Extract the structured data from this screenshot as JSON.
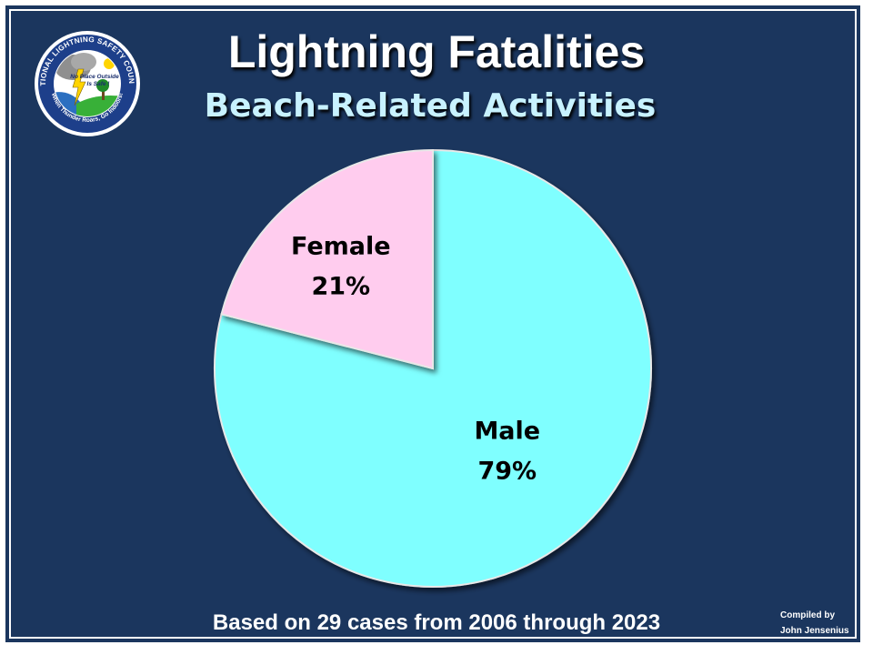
{
  "slide": {
    "title": "Lightning Fatalities",
    "subtitle": "Beach-Related Activities",
    "footer": "Based on 29 cases from 2006 through 2023",
    "credit_line1": "Compiled by",
    "credit_line2": "John Jensenius"
  },
  "logo": {
    "ring_text": "NATIONAL LIGHTNING SAFETY COUNCIL",
    "inner_line1": "No Place Outside",
    "inner_line2": "Is Safe !",
    "bottom_text": "When Thunder Roars, Go Indoors!"
  },
  "colors": {
    "background": "#1b365e",
    "male": "#7fffff",
    "female": "#ffccee",
    "subtitle": "#c8f2ff"
  },
  "chart_data": {
    "type": "pie",
    "title": "Lightning Fatalities",
    "subtitle": "Beach-Related Activities",
    "slices": [
      {
        "label": "Male",
        "value": 79,
        "value_label": "79%",
        "color": "#7fffff"
      },
      {
        "label": "Female",
        "value": 21,
        "value_label": "21%",
        "color": "#ffccee"
      }
    ],
    "start": "12 o'clock",
    "direction": "clockwise",
    "legend": "none"
  }
}
